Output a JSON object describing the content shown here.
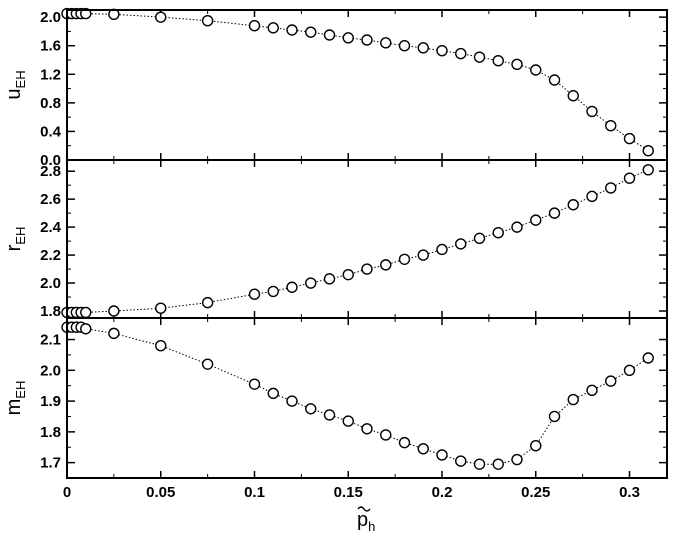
{
  "chart_data": [
    {
      "type": "scatter",
      "ylabel": "u",
      "ylabel_sub": "EH",
      "xlim": [
        0,
        0.32
      ],
      "ylim": [
        0.0,
        2.1
      ],
      "yticks": [
        0.0,
        0.4,
        0.8,
        1.2,
        1.6,
        2.0
      ],
      "ytick_labels": [
        "0.0",
        "0.4",
        "0.8",
        "1.2",
        "1.6",
        "2.0"
      ],
      "marker": "open-circle",
      "line": "dotted",
      "series": [
        {
          "x": [
            0.0,
            0.0025,
            0.005,
            0.0075,
            0.01,
            0.025,
            0.05,
            0.075,
            0.1,
            0.11,
            0.12,
            0.13,
            0.14,
            0.15,
            0.16,
            0.17,
            0.18,
            0.19,
            0.2,
            0.21,
            0.22,
            0.23,
            0.24,
            0.25,
            0.26,
            0.27,
            0.28,
            0.29,
            0.3,
            0.31
          ],
          "y": [
            2.05,
            2.05,
            2.05,
            2.05,
            2.05,
            2.04,
            2.0,
            1.95,
            1.88,
            1.85,
            1.82,
            1.79,
            1.75,
            1.71,
            1.68,
            1.64,
            1.6,
            1.57,
            1.53,
            1.49,
            1.44,
            1.39,
            1.34,
            1.26,
            1.12,
            0.9,
            0.68,
            0.48,
            0.3,
            0.13
          ]
        }
      ]
    },
    {
      "type": "scatter",
      "ylabel": "r",
      "ylabel_sub": "EH",
      "xlim": [
        0,
        0.32
      ],
      "ylim": [
        1.75,
        2.88
      ],
      "yticks": [
        1.8,
        2.0,
        2.2,
        2.4,
        2.6,
        2.8
      ],
      "ytick_labels": [
        "1.8",
        "2.0",
        "2.2",
        "2.4",
        "2.6",
        "2.8"
      ],
      "marker": "open-circle",
      "line": "dotted",
      "series": [
        {
          "x": [
            0.0,
            0.0025,
            0.005,
            0.0075,
            0.01,
            0.025,
            0.05,
            0.075,
            0.1,
            0.11,
            0.12,
            0.13,
            0.14,
            0.15,
            0.16,
            0.17,
            0.18,
            0.19,
            0.2,
            0.21,
            0.22,
            0.23,
            0.24,
            0.25,
            0.26,
            0.27,
            0.28,
            0.29,
            0.3,
            0.31
          ],
          "y": [
            1.79,
            1.79,
            1.79,
            1.79,
            1.79,
            1.8,
            1.82,
            1.86,
            1.92,
            1.94,
            1.97,
            2.0,
            2.03,
            2.06,
            2.1,
            2.13,
            2.17,
            2.2,
            2.24,
            2.28,
            2.32,
            2.36,
            2.4,
            2.45,
            2.5,
            2.56,
            2.62,
            2.68,
            2.75,
            2.81
          ]
        }
      ]
    },
    {
      "type": "scatter",
      "ylabel": "m",
      "ylabel_sub": "EH",
      "xlabel": "p",
      "xlabel_sub": "h",
      "xlim": [
        0,
        0.32
      ],
      "ylim": [
        1.65,
        2.17
      ],
      "yticks": [
        1.7,
        1.8,
        1.9,
        2.0,
        2.1
      ],
      "ytick_labels": [
        "1.7",
        "1.8",
        "1.9",
        "2.0",
        "2.1"
      ],
      "xticks": [
        0,
        0.05,
        0.1,
        0.15,
        0.2,
        0.25,
        0.3
      ],
      "xtick_labels": [
        "0",
        "0.05",
        "0.1",
        "0.15",
        "0.2",
        "0.25",
        "0.3"
      ],
      "marker": "open-circle",
      "line": "dotted",
      "series": [
        {
          "x": [
            0.0,
            0.0025,
            0.005,
            0.0075,
            0.01,
            0.025,
            0.05,
            0.075,
            0.1,
            0.11,
            0.12,
            0.13,
            0.14,
            0.15,
            0.16,
            0.17,
            0.18,
            0.19,
            0.2,
            0.21,
            0.22,
            0.23,
            0.24,
            0.25,
            0.26,
            0.27,
            0.28,
            0.29,
            0.3,
            0.31
          ],
          "y": [
            2.14,
            2.14,
            2.14,
            2.14,
            2.135,
            2.12,
            2.08,
            2.02,
            1.955,
            1.925,
            1.9,
            1.875,
            1.855,
            1.835,
            1.81,
            1.79,
            1.765,
            1.745,
            1.725,
            1.705,
            1.695,
            1.695,
            1.71,
            1.755,
            1.85,
            1.905,
            1.935,
            1.965,
            2.0,
            2.04
          ]
        }
      ]
    }
  ]
}
